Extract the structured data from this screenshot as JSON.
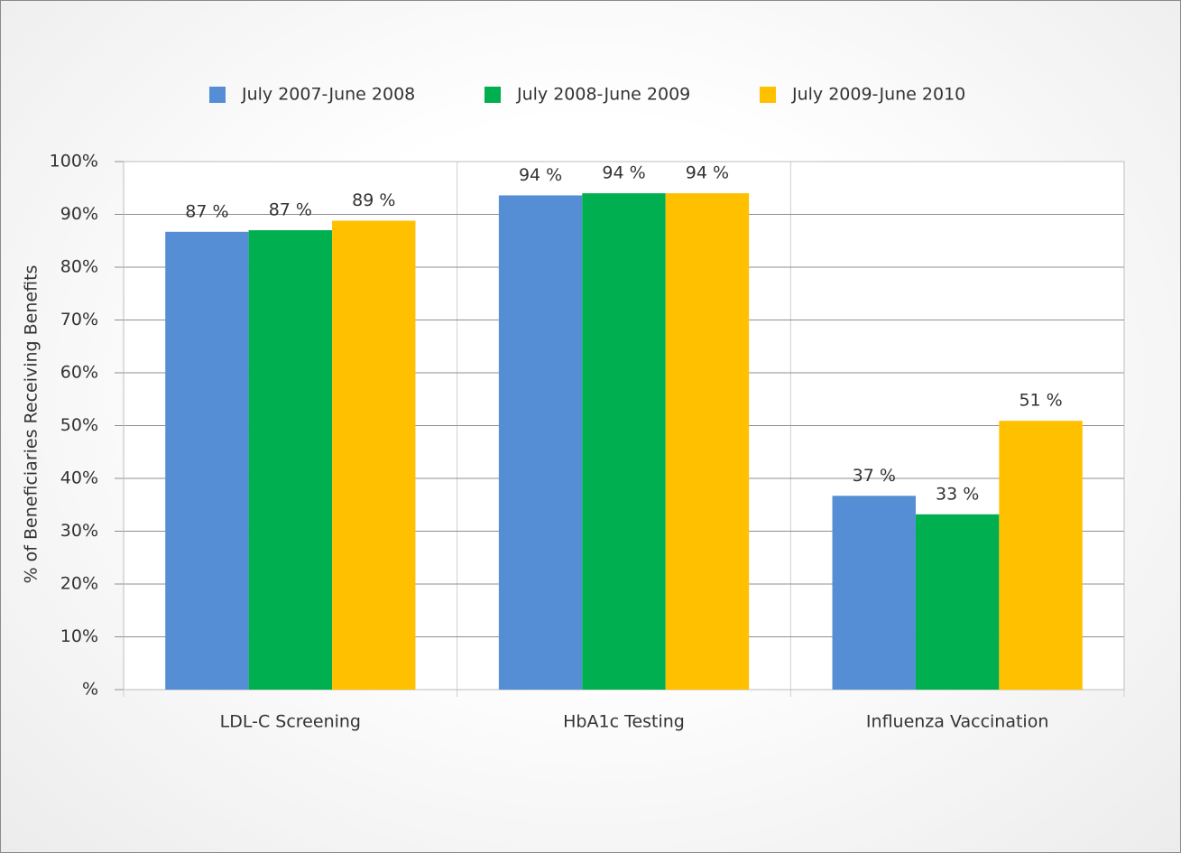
{
  "chart_data": {
    "type": "bar",
    "y_label": "% of Beneficiaries Receiving Benefits",
    "categories": [
      "LDL-C Screening",
      "HbA1c Testing",
      "Influenza Vaccination"
    ],
    "series": [
      {
        "name": "July 2007-June 2008",
        "color": "#558ed5",
        "values": [
          86.7,
          93.6,
          36.7
        ],
        "value_labels": [
          "87 %",
          "94 %",
          "37 %"
        ]
      },
      {
        "name": "July 2008-June 2009",
        "color": "#00b050",
        "values": [
          87,
          94,
          33.2
        ],
        "value_labels": [
          "87 %",
          "94 %",
          "33 %"
        ]
      },
      {
        "name": "July 2009-June 2010",
        "color": "#ffc000",
        "values": [
          88.8,
          94,
          50.9
        ],
        "value_labels": [
          "89 %",
          "94 %",
          "51 %"
        ]
      }
    ],
    "ylim": [
      0,
      100
    ],
    "yticks": [
      {
        "value": 0,
        "label": "%"
      },
      {
        "value": 10,
        "label": "10%"
      },
      {
        "value": 20,
        "label": "20%"
      },
      {
        "value": 30,
        "label": "30%"
      },
      {
        "value": 40,
        "label": "40%"
      },
      {
        "value": 50,
        "label": "50%"
      },
      {
        "value": 60,
        "label": "60%"
      },
      {
        "value": 70,
        "label": "70%"
      },
      {
        "value": 80,
        "label": "80%"
      },
      {
        "value": 90,
        "label": "90%"
      },
      {
        "value": 100,
        "label": "100%"
      }
    ],
    "grid": true
  }
}
